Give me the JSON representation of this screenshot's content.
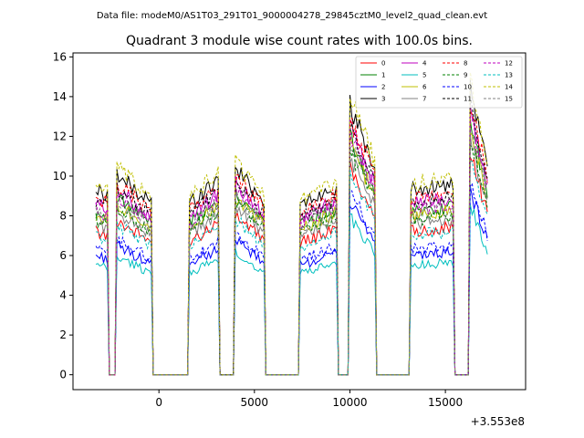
{
  "chart_data": {
    "type": "line",
    "suptitle": "Data file: modeM0/AS1T03_291T01_9000004278_29845cztM0_level2_quad_clean.evt",
    "title": "Quadrant 3 module wise count rates with 100.0s bins.",
    "xlabel": "",
    "ylabel": "",
    "x_offset_label": "+3.553e8",
    "xlim": [
      -4500,
      19200
    ],
    "ylim": [
      -0.75,
      16.2
    ],
    "xticks": [
      0,
      5000,
      10000,
      15000
    ],
    "xtick_labels": [
      "0",
      "5000",
      "10000",
      "15000"
    ],
    "yticks": [
      0,
      2,
      4,
      6,
      8,
      10,
      12,
      14,
      16
    ],
    "ytick_labels": [
      "0",
      "2",
      "4",
      "6",
      "8",
      "10",
      "12",
      "14",
      "16"
    ],
    "grid": false,
    "legend": "top-right",
    "bin_seconds": 100,
    "x_start": -3300,
    "x_end": 17200,
    "gaps": [
      [
        -2600,
        -2200
      ],
      [
        -300,
        1600
      ],
      [
        3100,
        4000
      ],
      [
        5600,
        7400
      ],
      [
        9400,
        10000
      ],
      [
        11400,
        13200
      ],
      [
        15500,
        16300
      ]
    ],
    "segments": [
      {
        "start": -3300,
        "end": -2700,
        "trend": [
          1.0,
          0.97
        ]
      },
      {
        "start": -2200,
        "end": -400,
        "trend": [
          1.08,
          0.93
        ]
      },
      {
        "start": 1600,
        "end": 3100,
        "trend": [
          0.93,
          1.06
        ]
      },
      {
        "start": 4000,
        "end": 5500,
        "trend": [
          1.12,
          0.94
        ]
      },
      {
        "start": 7400,
        "end": 9300,
        "trend": [
          0.92,
          1.02
        ]
      },
      {
        "start": 10000,
        "end": 11300,
        "trend": [
          1.45,
          1.12
        ]
      },
      {
        "start": 13200,
        "end": 15400,
        "trend": [
          1.0,
          1.03
        ]
      },
      {
        "start": 16300,
        "end": 17200,
        "trend": [
          1.55,
          1.12
        ]
      }
    ],
    "series": [
      {
        "name": "0",
        "base": 7.2,
        "color": "#ff0000",
        "dashed": false
      },
      {
        "name": "1",
        "base": 8.2,
        "color": "#008000",
        "dashed": false
      },
      {
        "name": "2",
        "base": 6.0,
        "color": "#0000ff",
        "dashed": false
      },
      {
        "name": "3",
        "base": 9.3,
        "color": "#000000",
        "dashed": false
      },
      {
        "name": "4",
        "base": 8.6,
        "color": "#bf00bf",
        "dashed": false
      },
      {
        "name": "5",
        "base": 5.5,
        "color": "#00bfbf",
        "dashed": false
      },
      {
        "name": "6",
        "base": 8.0,
        "color": "#bfbf00",
        "dashed": false
      },
      {
        "name": "7",
        "base": 7.6,
        "color": "#808080",
        "dashed": false
      },
      {
        "name": "8",
        "base": 8.9,
        "color": "#ff0000",
        "dashed": true
      },
      {
        "name": "9",
        "base": 7.8,
        "color": "#008000",
        "dashed": true
      },
      {
        "name": "10",
        "base": 6.3,
        "color": "#0000ff",
        "dashed": true
      },
      {
        "name": "11",
        "base": 8.7,
        "color": "#000000",
        "dashed": true
      },
      {
        "name": "12",
        "base": 8.3,
        "color": "#bf00bf",
        "dashed": true
      },
      {
        "name": "13",
        "base": 7.0,
        "color": "#00bfbf",
        "dashed": true
      },
      {
        "name": "14",
        "base": 9.6,
        "color": "#bfbf00",
        "dashed": true
      },
      {
        "name": "15",
        "base": 8.1,
        "color": "#808080",
        "dashed": true
      }
    ]
  }
}
